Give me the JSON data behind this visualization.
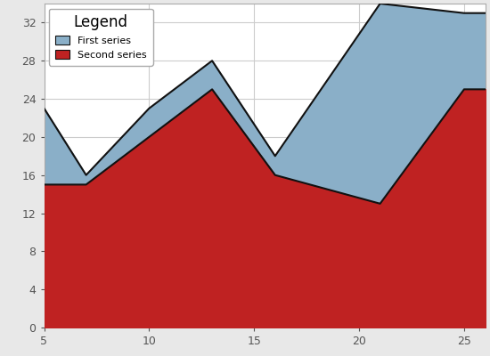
{
  "series1_x": [
    5,
    7,
    10,
    13,
    16,
    21,
    25,
    27
  ],
  "series1_y": [
    23,
    16,
    23,
    28,
    18,
    34,
    33,
    33
  ],
  "series2_x": [
    5,
    7,
    10,
    13,
    16,
    21,
    25,
    27
  ],
  "series2_y": [
    15,
    15,
    20,
    25,
    16,
    13,
    25,
    25
  ],
  "series1_color": "#8aafc8",
  "series1_edge": "#111111",
  "series2_color": "#bf2222",
  "series2_edge": "#111111",
  "xlim": [
    5,
    26
  ],
  "ylim": [
    0,
    34
  ],
  "xticks": [
    5,
    10,
    15,
    20,
    25
  ],
  "yticks": [
    0,
    4,
    8,
    12,
    16,
    20,
    24,
    28,
    32
  ],
  "legend_title": "Legend",
  "legend_label1": "First series",
  "legend_label2": "Second series",
  "bg_color": "#e8e8e8",
  "plot_bg": "#ffffff",
  "grid_color": "#cccccc"
}
